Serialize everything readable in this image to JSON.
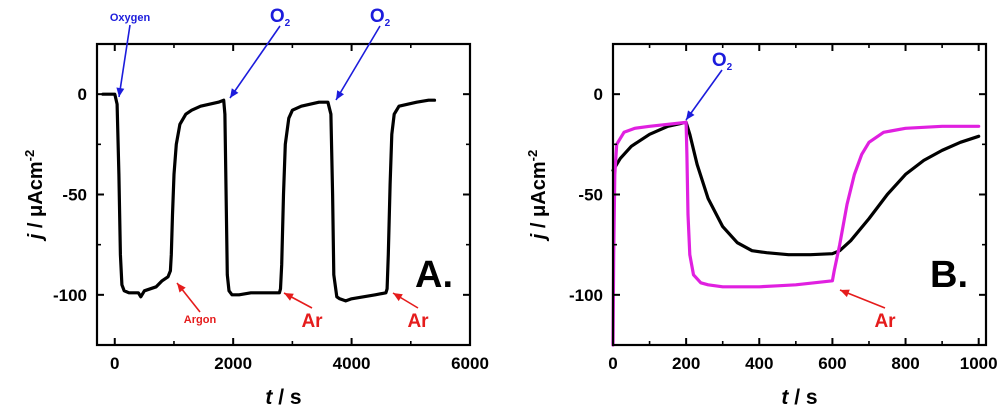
{
  "chart_data": [
    {
      "type": "line",
      "panel_label": "A.",
      "xlabel": {
        "var": "t",
        "unit": "s"
      },
      "ylabel": {
        "var": "j",
        "unit": "μAcm",
        "exp": "-2"
      },
      "xlim": [
        -300,
        6000
      ],
      "ylim": [
        -125,
        25
      ],
      "xticks": [
        0,
        2000,
        4000,
        6000
      ],
      "yticks": [
        0,
        -50,
        -100
      ],
      "series": [
        {
          "color": "#000000",
          "x": [
            -200,
            0,
            40,
            70,
            95,
            120,
            160,
            240,
            320,
            400,
            440,
            500,
            600,
            700,
            800,
            900,
            940,
            955,
            975,
            1000,
            1040,
            1100,
            1200,
            1300,
            1450,
            1600,
            1750,
            1840,
            1860,
            1880,
            1900,
            1930,
            1980,
            2100,
            2300,
            2500,
            2700,
            2780,
            2800,
            2820,
            2850,
            2880,
            2940,
            3000,
            3150,
            3300,
            3450,
            3600,
            3650,
            3680,
            3700,
            3750,
            3800,
            3900,
            4000,
            4200,
            4400,
            4580,
            4600,
            4620,
            4650,
            4680,
            4720,
            4800,
            4950,
            5100,
            5300,
            5400
          ],
          "y": [
            0,
            0,
            -5,
            -40,
            -80,
            -95,
            -98,
            -99,
            -99,
            -99,
            -101,
            -98,
            -97,
            -96,
            -93,
            -91,
            -88,
            -80,
            -60,
            -40,
            -25,
            -15,
            -10,
            -8,
            -6,
            -5,
            -4,
            -3,
            -10,
            -50,
            -90,
            -98,
            -100,
            -100,
            -99,
            -99,
            -99,
            -99,
            -97,
            -85,
            -50,
            -25,
            -12,
            -8,
            -6,
            -5,
            -4,
            -4,
            -10,
            -50,
            -90,
            -101,
            -102,
            -103,
            -102,
            -101,
            -100,
            -99,
            -97,
            -80,
            -45,
            -20,
            -10,
            -6,
            -5,
            -4,
            -3,
            -3
          ]
        }
      ],
      "annotations": [
        {
          "text": "Oxygen",
          "sub": "",
          "color": "#1c1cdc",
          "x": 0,
          "y": 0
        },
        {
          "text": "O",
          "sub": "2",
          "color": "#1c1cdc",
          "x": 1850,
          "y": -3
        },
        {
          "text": "O",
          "sub": "2",
          "color": "#1c1cdc",
          "x": 3650,
          "y": -4
        },
        {
          "text": "Argon",
          "sub": "",
          "color": "#e51c1c",
          "x": 940,
          "y": -90
        },
        {
          "text": "Ar",
          "sub": "",
          "color": "#e51c1c",
          "x": 2790,
          "y": -99
        },
        {
          "text": "Ar",
          "sub": "",
          "color": "#e51c1c",
          "x": 4600,
          "y": -99
        }
      ]
    },
    {
      "type": "line",
      "panel_label": "B.",
      "xlabel": {
        "var": "t",
        "unit": "s"
      },
      "ylabel": {
        "var": "j",
        "unit": "μAcm",
        "exp": "-2"
      },
      "xlim": [
        0,
        1020
      ],
      "ylim": [
        -125,
        25
      ],
      "xticks": [
        0,
        200,
        400,
        600,
        800,
        1000
      ],
      "yticks": [
        0,
        -50,
        -100
      ],
      "series": [
        {
          "color": "#000000",
          "x": [
            0,
            20,
            50,
            100,
            150,
            200,
            210,
            230,
            260,
            300,
            340,
            380,
            420,
            480,
            540,
            600,
            620,
            650,
            700,
            750,
            800,
            850,
            900,
            950,
            1000
          ],
          "y": [
            -38,
            -32,
            -26,
            -20,
            -16,
            -14,
            -20,
            -35,
            -52,
            -66,
            -74,
            -78,
            -79,
            -80,
            -80,
            -79.5,
            -78,
            -73,
            -62,
            -50,
            -40,
            -33,
            -28,
            -24,
            -21
          ]
        },
        {
          "color": "#e020e0",
          "x": [
            0,
            2,
            5,
            10,
            30,
            60,
            100,
            150,
            200,
            202,
            205,
            210,
            220,
            240,
            260,
            300,
            350,
            400,
            450,
            500,
            550,
            600,
            605,
            620,
            640,
            660,
            680,
            700,
            740,
            800,
            900,
            1000
          ],
          "y": [
            -125,
            -80,
            -40,
            -25,
            -19,
            -17,
            -16,
            -15,
            -14,
            -30,
            -60,
            -80,
            -90,
            -94,
            -95,
            -96,
            -96,
            -96,
            -95.5,
            -95,
            -94,
            -93,
            -88,
            -75,
            -55,
            -40,
            -30,
            -24,
            -19,
            -17,
            -16,
            -16
          ]
        }
      ],
      "annotations": [
        {
          "text": "O",
          "sub": "2",
          "color": "#1c1cdc",
          "x": 200,
          "y": -14
        },
        {
          "text": "Ar",
          "sub": "",
          "color": "#e51c1c",
          "x": 610,
          "y": -93
        }
      ]
    }
  ]
}
